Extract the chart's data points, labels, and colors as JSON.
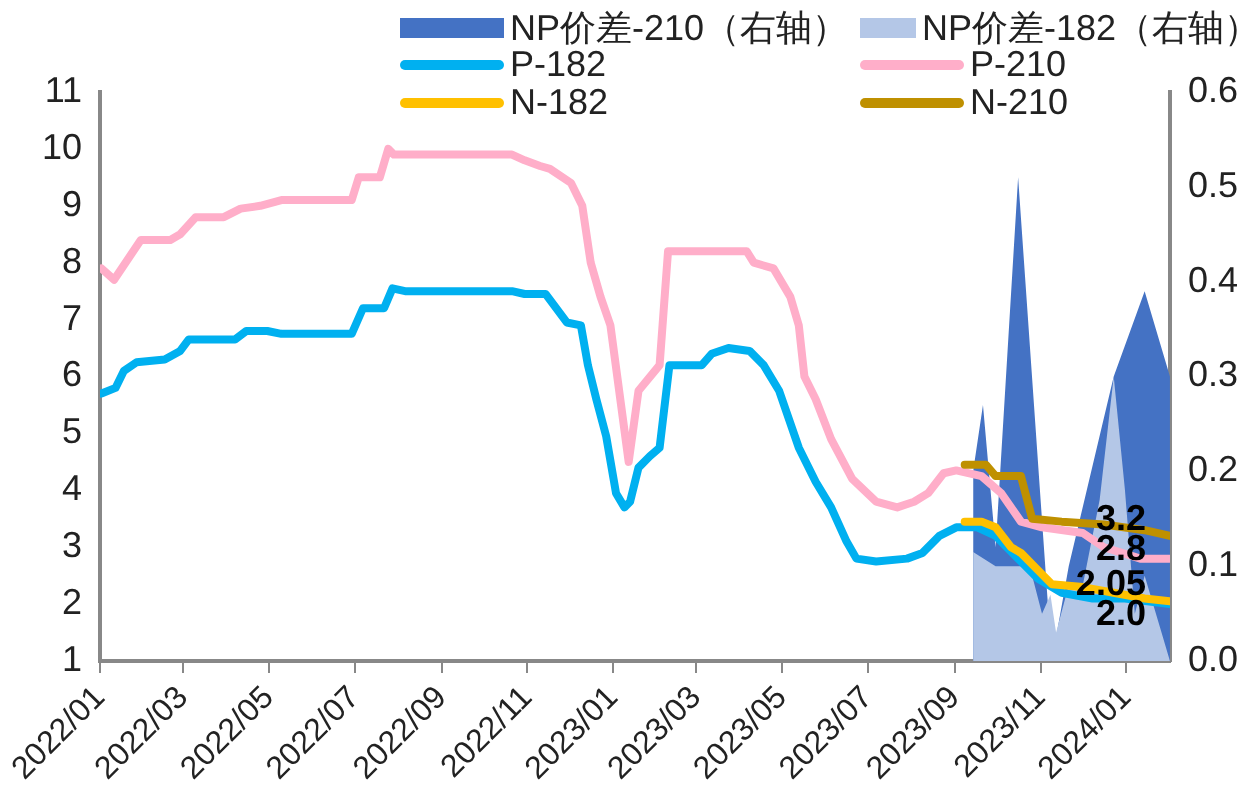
{
  "chart_data": {
    "type": "line",
    "legend": "top",
    "grid": false,
    "xlim": [
      "2022-01-01",
      "2024-02-01"
    ],
    "xticks": [
      {
        "value": "2022-01-01",
        "label": "2022/01"
      },
      {
        "value": "2022-03-01",
        "label": "2022/03"
      },
      {
        "value": "2022-05-01",
        "label": "2022/05"
      },
      {
        "value": "2022-07-01",
        "label": "2022/07"
      },
      {
        "value": "2022-09-01",
        "label": "2022/09"
      },
      {
        "value": "2022-11-01",
        "label": "2022/11"
      },
      {
        "value": "2023-01-01",
        "label": "2023/01"
      },
      {
        "value": "2023-03-01",
        "label": "2023/03"
      },
      {
        "value": "2023-05-01",
        "label": "2023/05"
      },
      {
        "value": "2023-07-01",
        "label": "2023/07"
      },
      {
        "value": "2023-09-01",
        "label": "2023/09"
      },
      {
        "value": "2023-11-01",
        "label": "2023/11"
      },
      {
        "value": "2024-01-01",
        "label": "2024/01"
      }
    ],
    "ylim": [
      1,
      11
    ],
    "yticks": [
      1,
      2,
      3,
      4,
      5,
      6,
      7,
      8,
      9,
      10,
      11
    ],
    "y2lim": [
      0,
      0.6
    ],
    "y2ticks": [
      {
        "value": 0,
        "label": "0.0"
      },
      {
        "value": 0.1,
        "label": "0.1"
      },
      {
        "value": 0.2,
        "label": "0.2"
      },
      {
        "value": 0.3,
        "label": "0.3"
      },
      {
        "value": 0.4,
        "label": "0.4"
      },
      {
        "value": 0.5,
        "label": "0.5"
      },
      {
        "value": 0.6,
        "label": "0.6"
      }
    ],
    "series": [
      {
        "name": "NP价差-210（右轴）",
        "type": "area",
        "axis": "y2",
        "color": "#4472c4",
        "x": [
          "2023-09-14",
          "2023-09-21",
          "2023-09-30",
          "2023-10-16",
          "2023-11-09",
          "2023-11-21",
          "2023-12-23",
          "2024-01-14",
          "2024-02-01"
        ],
        "values": [
          0.2,
          0.27,
          0.12,
          0.51,
          0.0,
          0.1,
          0.3,
          0.39,
          0.3
        ]
      },
      {
        "name": "NP价差-182（右轴）",
        "type": "area",
        "axis": "y2",
        "color": "#b4c7e7",
        "x": [
          "2023-09-14",
          "2023-09-30",
          "2023-10-18",
          "2023-10-26",
          "2023-11-02",
          "2023-11-08",
          "2023-11-12",
          "2023-11-21",
          "2023-12-01",
          "2023-12-13",
          "2023-12-23",
          "2023-12-31",
          "2024-01-07",
          "2024-01-14",
          "2024-01-26",
          "2024-02-01"
        ],
        "values": [
          0.115,
          0.1,
          0.1,
          0.09,
          0.05,
          0.07,
          0.03,
          0.08,
          0.08,
          0.17,
          0.3,
          0.18,
          0.05,
          0.09,
          0.03,
          0.0
        ]
      },
      {
        "name": "P-182",
        "type": "line",
        "color": "#00b0f0",
        "x": [
          "2022-01-02",
          "2022-01-12",
          "2022-01-18",
          "2022-01-27",
          "2022-02-16",
          "2022-02-27",
          "2022-03-05",
          "2022-04-07",
          "2022-04-15",
          "2022-04-30",
          "2022-05-10",
          "2022-06-29",
          "2022-07-07",
          "2022-07-22",
          "2022-07-28",
          "2022-08-06",
          "2022-10-21",
          "2022-10-30",
          "2022-11-14",
          "2022-11-29",
          "2022-12-09",
          "2022-12-14",
          "2022-12-20",
          "2022-12-27",
          "2023-01-03",
          "2023-01-09",
          "2023-01-13",
          "2023-01-19",
          "2023-01-27",
          "2023-02-03",
          "2023-02-10",
          "2023-03-05",
          "2023-03-12",
          "2023-03-24",
          "2023-04-08",
          "2023-04-18",
          "2023-04-29",
          "2023-05-13",
          "2023-05-25",
          "2023-06-05",
          "2023-06-16",
          "2023-06-23",
          "2023-07-07",
          "2023-07-29",
          "2023-08-09",
          "2023-08-21",
          "2023-09-02",
          "2023-09-17",
          "2023-09-30",
          "2023-10-18",
          "2023-10-30",
          "2023-11-16",
          "2023-12-08",
          "2023-12-31",
          "2024-02-01"
        ],
        "values": [
          5.7,
          5.8,
          6.1,
          6.25,
          6.3,
          6.45,
          6.65,
          6.65,
          6.8,
          6.8,
          6.75,
          6.75,
          7.2,
          7.2,
          7.55,
          7.5,
          7.5,
          7.45,
          7.45,
          6.95,
          6.9,
          6.2,
          5.6,
          4.95,
          3.95,
          3.7,
          3.8,
          4.4,
          4.6,
          4.75,
          6.2,
          6.2,
          6.4,
          6.5,
          6.45,
          6.2,
          5.75,
          4.75,
          4.15,
          3.7,
          3.1,
          2.8,
          2.75,
          2.8,
          2.9,
          3.2,
          3.35,
          3.35,
          3.2,
          2.75,
          2.45,
          2.2,
          2.1,
          2.1,
          2.0
        ],
        "value_labels": [
          null,
          null,
          null,
          null,
          null,
          null,
          null,
          null,
          null,
          null,
          null,
          null,
          null,
          null,
          null,
          null,
          null,
          null,
          null,
          null,
          null,
          null,
          null,
          null,
          null,
          null,
          null,
          null,
          null,
          null,
          null,
          null,
          null,
          null,
          null,
          null,
          null,
          null,
          null,
          null,
          null,
          null,
          null,
          null,
          null,
          null,
          null,
          null,
          null,
          null,
          null,
          null,
          null,
          null,
          "2.0"
        ]
      },
      {
        "name": "P-210",
        "type": "line",
        "color": "#ffaec9",
        "x": [
          "2022-01-02",
          "2022-01-11",
          "2022-01-30",
          "2022-02-20",
          "2022-02-27",
          "2022-03-10",
          "2022-03-30",
          "2022-04-11",
          "2022-04-25",
          "2022-05-10",
          "2022-06-29",
          "2022-07-04",
          "2022-07-19",
          "2022-07-25",
          "2022-07-29",
          "2022-10-21",
          "2022-10-30",
          "2022-11-10",
          "2022-11-17",
          "2022-12-02",
          "2022-12-10",
          "2022-12-16",
          "2022-12-23",
          "2022-12-30",
          "2023-01-12",
          "2023-01-19",
          "2023-02-03",
          "2023-02-09",
          "2023-04-06",
          "2023-04-11",
          "2023-04-25",
          "2023-05-07",
          "2023-05-13",
          "2023-05-17",
          "2023-05-25",
          "2023-06-05",
          "2023-06-20",
          "2023-07-07",
          "2023-07-22",
          "2023-08-03",
          "2023-08-13",
          "2023-08-24",
          "2023-09-02",
          "2023-09-20",
          "2023-10-04",
          "2023-10-18",
          "2023-11-02",
          "2023-12-01",
          "2023-12-16",
          "2024-01-11",
          "2024-02-01"
        ],
        "values": [
          7.9,
          7.7,
          8.4,
          8.4,
          8.5,
          8.8,
          8.8,
          8.95,
          9.0,
          9.1,
          9.1,
          9.5,
          9.5,
          10.0,
          9.9,
          9.9,
          9.8,
          9.7,
          9.65,
          9.4,
          9.0,
          8.0,
          7.4,
          6.9,
          4.5,
          5.75,
          6.2,
          8.2,
          8.2,
          8.0,
          7.9,
          7.4,
          6.9,
          6.0,
          5.6,
          4.9,
          4.2,
          3.8,
          3.7,
          3.8,
          3.95,
          4.3,
          4.35,
          4.25,
          3.95,
          3.45,
          3.35,
          3.25,
          3.0,
          2.8,
          2.8
        ],
        "value_labels": [
          null,
          null,
          null,
          null,
          null,
          null,
          null,
          null,
          null,
          null,
          null,
          null,
          null,
          null,
          null,
          null,
          null,
          null,
          null,
          null,
          null,
          null,
          null,
          null,
          null,
          null,
          null,
          null,
          null,
          null,
          null,
          null,
          null,
          null,
          null,
          null,
          null,
          null,
          null,
          null,
          null,
          null,
          null,
          null,
          null,
          null,
          null,
          null,
          null,
          null,
          "2.8"
        ]
      },
      {
        "name": "N-182",
        "type": "line",
        "color": "#ffc000",
        "x": [
          "2023-09-08",
          "2023-09-20",
          "2023-09-30",
          "2023-10-11",
          "2023-10-18",
          "2023-10-30",
          "2023-11-09",
          "2023-12-01",
          "2023-12-23",
          "2024-01-14",
          "2024-02-01"
        ],
        "values": [
          3.45,
          3.45,
          3.35,
          3.0,
          2.9,
          2.6,
          2.35,
          2.3,
          2.2,
          2.1,
          2.05
        ],
        "value_labels": [
          null,
          null,
          null,
          null,
          null,
          null,
          null,
          null,
          null,
          null,
          "2.05"
        ]
      },
      {
        "name": "N-210",
        "type": "line",
        "color": "#bf9000",
        "x": [
          "2023-09-08",
          "2023-09-23",
          "2023-09-30",
          "2023-10-18",
          "2023-10-26",
          "2023-11-16",
          "2023-12-16",
          "2024-01-14",
          "2024-02-01"
        ],
        "values": [
          4.45,
          4.45,
          4.25,
          4.25,
          3.5,
          3.45,
          3.4,
          3.3,
          3.2
        ],
        "value_labels": [
          null,
          null,
          null,
          null,
          null,
          null,
          null,
          null,
          "3.2"
        ]
      }
    ]
  }
}
